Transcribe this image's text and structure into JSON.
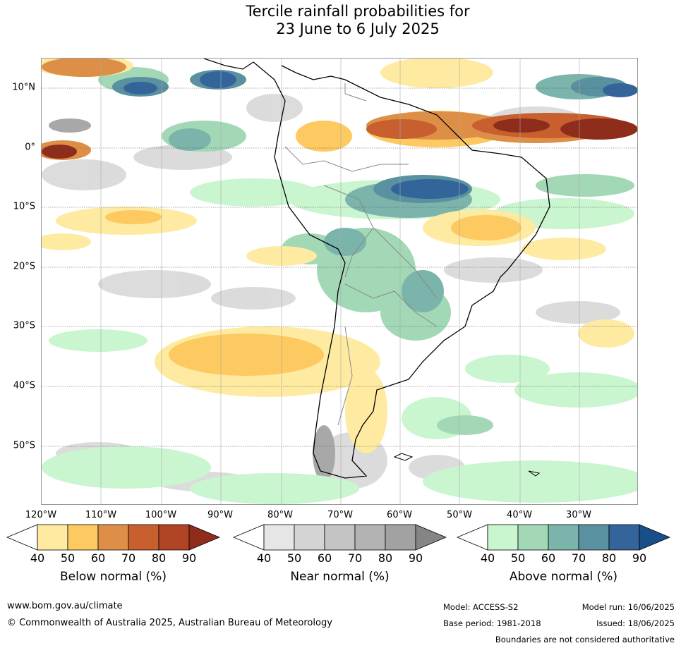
{
  "title": {
    "line1": "Tercile rainfall probabilities for",
    "line2": "23 June to 6 July 2025"
  },
  "map": {
    "lat_labels": [
      "10°N",
      "0°",
      "10°S",
      "20°S",
      "30°S",
      "40°S",
      "50°S"
    ],
    "lon_labels": [
      "120°W",
      "110°W",
      "100°W",
      "90°W",
      "80°W",
      "70°W",
      "60°W",
      "50°W",
      "40°W",
      "30°W"
    ]
  },
  "legends": [
    {
      "title": "Below normal (%)",
      "ticks": [
        "40",
        "50",
        "60",
        "70",
        "80",
        "90"
      ],
      "colors": [
        "#ffffff",
        "#feeaa0",
        "#fdc961",
        "#de8f47",
        "#c85f2e",
        "#b14424",
        "#8e2d1c"
      ]
    },
    {
      "title": "Near normal (%)",
      "ticks": [
        "40",
        "50",
        "60",
        "70",
        "80",
        "90"
      ],
      "colors": [
        "#ffffff",
        "#e6e6e6",
        "#d4d4d4",
        "#c4c4c4",
        "#b3b3b3",
        "#a2a2a2",
        "#858585"
      ]
    },
    {
      "title": "Above normal (%)",
      "ticks": [
        "40",
        "50",
        "60",
        "70",
        "80",
        "90"
      ],
      "colors": [
        "#ffffff",
        "#c9f5cf",
        "#a2d8b6",
        "#7bb4ab",
        "#5a91a0",
        "#34659a",
        "#184f88"
      ]
    }
  ],
  "footer": {
    "website": "www.bom.gov.au/climate",
    "copyright": "© Commonwealth of Australia 2025, Australian Bureau of Meteorology",
    "model": "Model: ACCESS-S2",
    "base_period": "Base period: 1981-2018",
    "model_run": "Model run: 16/06/2025",
    "issued": "Issued: 18/06/2025",
    "disclaimer": "Boundaries are not considered authoritative"
  }
}
